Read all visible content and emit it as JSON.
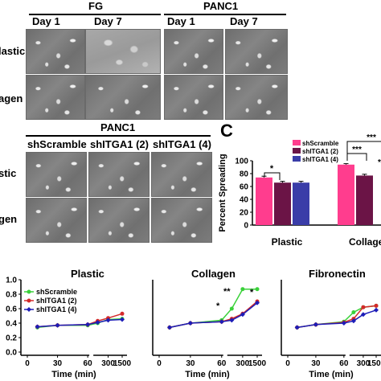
{
  "panel_a": {
    "group_fg": "FG",
    "group_panc1": "PANC1",
    "col_day1_fg": "Day 1",
    "col_day7_fg": "Day 7",
    "col_day1_panc": "Day 1",
    "col_day7_panc": "Day 7",
    "row_plastic": "lastic",
    "row_collagen": "agen"
  },
  "panel_b": {
    "group": "PANC1",
    "col1": "shScramble",
    "col2": "shITGA1 (2)",
    "col3": "shITGA1 (4)",
    "row_plastic": "stic",
    "row_collagen": "gen"
  },
  "panel_c": {
    "letter": "C",
    "ylabel": "Percent Spreading",
    "legend": [
      "shScramble",
      "shITGA1 (2)",
      "shITGA1 (4)"
    ],
    "cat_plastic": "Plastic",
    "cat_collagen": "Collage",
    "sig1": "*",
    "sig2": "***",
    "sig3": "***",
    "sig4": "*"
  },
  "panel_d": {
    "title_plastic": "Plastic",
    "title_collagen": "Collagen",
    "title_fibronectin": "Fibronectin",
    "xlabel": "Time (min)",
    "legend": [
      "shScramble",
      "shITGA1 (2)",
      "shITGA1 (4)"
    ],
    "sig_a": "*",
    "sig_b": "**",
    "sig_c": "*"
  },
  "colors": {
    "scramble_bar": "#ff3d8e",
    "itga2_bar": "#6b1446",
    "itga4_bar": "#3a3da8",
    "scramble_line": "#3ad13a",
    "itga2_line": "#d42a2a",
    "itga4_line": "#1d1db8"
  },
  "chart_data": [
    {
      "type": "bar",
      "categories": [
        "Plastic",
        "Collage"
      ],
      "series": [
        {
          "name": "shScramble",
          "values": [
            74,
            94
          ]
        },
        {
          "name": "shITGA1 (2)",
          "values": [
            66,
            77
          ]
        },
        {
          "name": "shITGA1 (4)",
          "values": [
            66,
            null
          ]
        }
      ],
      "errors": [
        [
          2,
          1.5
        ],
        [
          2,
          2
        ],
        [
          2,
          null
        ]
      ],
      "ylabel": "Percent Spreading",
      "ylim": [
        0,
        100
      ],
      "yticks": [
        "0",
        "20",
        "40",
        "60",
        "80",
        "100"
      ]
    },
    {
      "type": "line",
      "title": "Plastic",
      "xlabel": "Time (min)",
      "x": [
        10,
        30,
        60,
        90,
        300,
        1500
      ],
      "xticks": [
        "0",
        "30",
        "60",
        "300",
        "1500"
      ],
      "yticks": [
        "0.0",
        "0.2",
        "0.4",
        "0.6",
        "0.8",
        "1.0"
      ],
      "ylim": [
        0,
        1.0
      ],
      "series": [
        {
          "name": "shScramble",
          "values": [
            0.34,
            0.37,
            0.37,
            0.4,
            0.45,
            0.46
          ]
        },
        {
          "name": "shITGA1 (2)",
          "values": [
            0.35,
            0.37,
            0.38,
            0.43,
            0.47,
            0.53
          ]
        },
        {
          "name": "shITGA1 (4)",
          "values": [
            0.35,
            0.37,
            0.38,
            0.41,
            0.44,
            0.45
          ]
        }
      ]
    },
    {
      "type": "line",
      "title": "Collagen",
      "xlabel": "Time (min)",
      "x": [
        10,
        30,
        60,
        90,
        300,
        1500
      ],
      "xticks": [
        "0",
        "30",
        "60",
        "300",
        "1500"
      ],
      "ylim": [
        0,
        1.0
      ],
      "series": [
        {
          "name": "shScramble",
          "values": [
            0.34,
            0.4,
            0.44,
            0.6,
            0.87,
            0.87
          ]
        },
        {
          "name": "shITGA1 (2)",
          "values": [
            0.34,
            0.4,
            0.42,
            0.46,
            0.53,
            0.7
          ]
        },
        {
          "name": "shITGA1 (4)",
          "values": [
            0.34,
            0.4,
            0.42,
            0.44,
            0.52,
            0.68
          ]
        }
      ]
    },
    {
      "type": "line",
      "title": "Fibronectin",
      "xlabel": "Time (min)",
      "x": [
        10,
        30,
        60,
        90,
        300,
        1500
      ],
      "xticks": [
        "0",
        "30",
        "60",
        "300",
        "1500"
      ],
      "ylim": [
        0,
        1.0
      ],
      "series": [
        {
          "name": "shScramble",
          "values": [
            0.34,
            0.38,
            0.42,
            0.55,
            0.62,
            0.64
          ]
        },
        {
          "name": "shITGA1 (2)",
          "values": [
            0.34,
            0.38,
            0.41,
            0.46,
            0.62,
            0.64
          ]
        },
        {
          "name": "shITGA1 (4)",
          "values": [
            0.34,
            0.38,
            0.4,
            0.43,
            0.52,
            0.58
          ]
        }
      ]
    }
  ]
}
